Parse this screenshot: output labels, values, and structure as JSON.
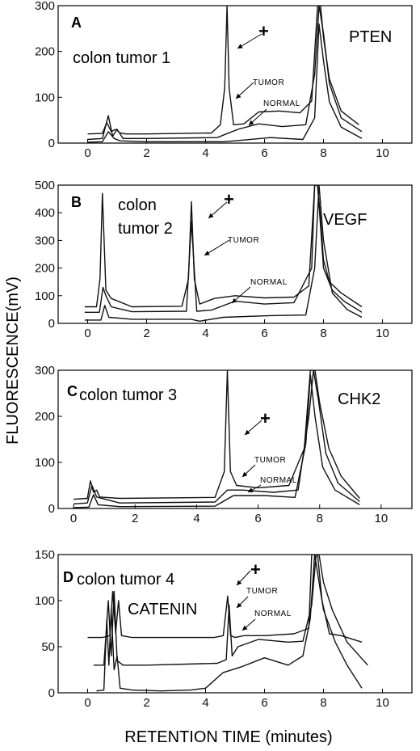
{
  "figure": {
    "y_axis_label": "FLUORESCENCE(mV)",
    "x_axis_label": "RETENTION TIME (minutes)"
  },
  "chart_data": [
    {
      "type": "line",
      "panel_letter": "A",
      "title": "colon tumor 1",
      "gene": "PTEN",
      "xlim": [
        -1,
        11
      ],
      "ylim": [
        0,
        300
      ],
      "x_ticks": [
        0,
        2,
        4,
        6,
        8,
        10
      ],
      "y_ticks": [
        0,
        100,
        200,
        300
      ],
      "annotations": {
        "plus": "+",
        "tumor": "TUMOR",
        "normal": "NORMAL"
      },
      "series": [
        {
          "x": [
            0,
            0.5,
            0.65,
            0.8,
            0.95,
            1.1,
            1.3,
            2,
            4.2,
            4.5,
            4.65,
            4.73,
            4.8,
            4.95,
            5.3,
            5.8,
            6.5,
            7.2,
            7.6,
            7.8,
            7.9,
            8.0,
            8.2,
            8.6,
            9.2
          ],
          "y": [
            20,
            21,
            45,
            25,
            30,
            22,
            20,
            20,
            22,
            40,
            120,
            300,
            120,
            40,
            42,
            68,
            70,
            66,
            92,
            300,
            300,
            230,
            140,
            70,
            40
          ]
        },
        {
          "x": [
            0,
            0.5,
            0.7,
            0.85,
            1.0,
            1.2,
            2,
            4.4,
            4.7,
            5.1,
            5.8,
            6.6,
            7.4,
            7.7,
            7.85,
            8.0,
            8.2,
            8.6,
            9.3
          ],
          "y": [
            8,
            10,
            60,
            15,
            30,
            10,
            10,
            12,
            20,
            30,
            42,
            36,
            40,
            150,
            300,
            240,
            130,
            55,
            25
          ]
        },
        {
          "x": [
            0,
            0.5,
            0.7,
            0.9,
            1.1,
            2,
            4.6,
            5.2,
            6.2,
            7.3,
            7.7,
            7.85,
            8.0,
            8.2,
            8.6,
            9.3
          ],
          "y": [
            2,
            3,
            25,
            10,
            5,
            3,
            3,
            6,
            12,
            8,
            55,
            260,
            180,
            90,
            35,
            10
          ]
        }
      ]
    },
    {
      "type": "line",
      "panel_letter": "B",
      "title": "colon\ntumor 2",
      "gene": "VEGF",
      "xlim": [
        -1,
        11
      ],
      "ylim": [
        0,
        500
      ],
      "x_ticks": [
        0,
        2,
        4,
        6,
        8,
        10
      ],
      "y_ticks": [
        0,
        100,
        200,
        300,
        400,
        500
      ],
      "annotations": {
        "plus": "+",
        "tumor": "TUMOR",
        "normal": "NORMAL"
      },
      "series": [
        {
          "x": [
            -0.1,
            0.3,
            0.42,
            0.5,
            0.62,
            0.8,
            1.5,
            3.2,
            3.42,
            3.52,
            3.62,
            3.8,
            4.3,
            5.0,
            6.0,
            7.0,
            7.5,
            7.7,
            7.8,
            7.9,
            8.0,
            8.2,
            8.6,
            9.3
          ],
          "y": [
            60,
            60,
            160,
            470,
            120,
            90,
            60,
            62,
            160,
            440,
            160,
            70,
            90,
            100,
            92,
            95,
            135,
            500,
            500,
            380,
            230,
            150,
            110,
            60
          ]
        },
        {
          "x": [
            -0.1,
            0.4,
            0.52,
            0.62,
            0.8,
            1.5,
            3.35,
            3.52,
            3.7,
            4.2,
            5.0,
            6.0,
            7.0,
            7.6,
            7.7,
            7.8,
            7.9,
            8.0,
            8.3,
            8.7,
            9.3
          ],
          "y": [
            40,
            40,
            130,
            100,
            60,
            42,
            44,
            370,
            44,
            48,
            80,
            70,
            75,
            200,
            500,
            500,
            350,
            200,
            120,
            80,
            40
          ]
        },
        {
          "x": [
            -0.1,
            0.45,
            0.58,
            0.72,
            1.5,
            3.5,
            3.8,
            4.6,
            6.2,
            7.4,
            7.7,
            7.85,
            8.0,
            8.3,
            8.8,
            9.3
          ],
          "y": [
            12,
            12,
            65,
            22,
            15,
            15,
            8,
            22,
            28,
            30,
            200,
            500,
            300,
            110,
            50,
            22
          ]
        }
      ]
    },
    {
      "type": "line",
      "panel_letter": "C",
      "title": "colon tumor 3",
      "gene": "CHK2",
      "xlim": [
        -0.5,
        11
      ],
      "ylim": [
        0,
        300
      ],
      "x_ticks": [
        0,
        2,
        4,
        6,
        8,
        10
      ],
      "y_ticks": [
        0,
        100,
        200,
        300
      ],
      "annotations": {
        "plus": "+",
        "tumor": "TUMOR",
        "normal": "NORMAL"
      },
      "series": [
        {
          "x": [
            0,
            0.45,
            0.55,
            0.65,
            0.75,
            0.85,
            1.5,
            4.6,
            4.9,
            5.0,
            5.1,
            5.3,
            6.0,
            7.0,
            7.5,
            7.7,
            7.85,
            8.0,
            8.3,
            8.7,
            9.3
          ],
          "y": [
            20,
            22,
            60,
            35,
            40,
            25,
            22,
            24,
            80,
            300,
            80,
            50,
            45,
            50,
            130,
            300,
            300,
            230,
            130,
            70,
            22
          ]
        },
        {
          "x": [
            0,
            0.45,
            0.6,
            0.75,
            1.5,
            4.6,
            5.0,
            5.5,
            6.5,
            7.3,
            7.65,
            7.8,
            7.95,
            8.2,
            8.6,
            9.3
          ],
          "y": [
            10,
            12,
            50,
            25,
            12,
            14,
            40,
            40,
            35,
            40,
            200,
            300,
            240,
            120,
            55,
            15
          ]
        },
        {
          "x": [
            0,
            0.5,
            0.65,
            0.8,
            1.5,
            4.6,
            5.2,
            6.2,
            7.2,
            7.55,
            7.7,
            7.85,
            8.1,
            8.5,
            9.3
          ],
          "y": [
            2,
            3,
            30,
            8,
            4,
            5,
            28,
            28,
            24,
            140,
            290,
            200,
            90,
            40,
            8
          ]
        }
      ]
    },
    {
      "type": "line",
      "panel_letter": "D",
      "title": "colon tumor 4",
      "gene": "CATENIN",
      "xlim": [
        -1,
        11
      ],
      "ylim": [
        0,
        150
      ],
      "x_ticks": [
        0,
        2,
        4,
        6,
        8,
        10
      ],
      "y_ticks": [
        0,
        50,
        100,
        150
      ],
      "annotations": {
        "plus": "+",
        "tumor": "TUMOR",
        "normal": "NORMAL"
      },
      "series": [
        {
          "x": [
            0,
            0.5,
            0.75,
            0.85,
            0.95,
            1.05,
            1.15,
            1.5,
            2.5,
            4.3,
            4.6,
            4.75,
            4.85,
            5.0,
            5.3,
            6.0,
            7.0,
            7.5,
            7.6,
            7.8,
            7.95,
            8.2,
            8.6,
            9.3
          ],
          "y": [
            60,
            60,
            62,
            110,
            65,
            100,
            62,
            60,
            60,
            60,
            62,
            105,
            62,
            60,
            62,
            62,
            64,
            70,
            150,
            150,
            100,
            64,
            62,
            55
          ]
        },
        {
          "x": [
            0.2,
            0.55,
            0.7,
            0.8,
            0.9,
            1.0,
            1.2,
            2,
            4.4,
            4.7,
            4.8,
            4.9,
            5.1,
            5.8,
            6.8,
            7.3,
            7.6,
            7.75,
            7.85,
            8.0,
            8.3,
            8.8,
            9.5
          ],
          "y": [
            30,
            30,
            100,
            40,
            110,
            35,
            30,
            30,
            32,
            36,
            95,
            40,
            50,
            58,
            55,
            56,
            95,
            150,
            150,
            120,
            90,
            55,
            30
          ]
        },
        {
          "x": [
            0.3,
            0.55,
            0.65,
            0.72,
            0.8,
            0.9,
            1.0,
            1.1,
            1.5,
            2.5,
            3.5,
            4.0,
            4.6,
            5.2,
            6.0,
            6.8,
            7.3,
            7.55,
            7.7,
            7.85,
            8.0,
            8.4,
            8.8,
            9.3
          ],
          "y": [
            2,
            3,
            80,
            30,
            90,
            25,
            40,
            5,
            3,
            2,
            3,
            5,
            22,
            28,
            38,
            30,
            40,
            80,
            150,
            120,
            90,
            55,
            30,
            5
          ]
        }
      ]
    }
  ]
}
